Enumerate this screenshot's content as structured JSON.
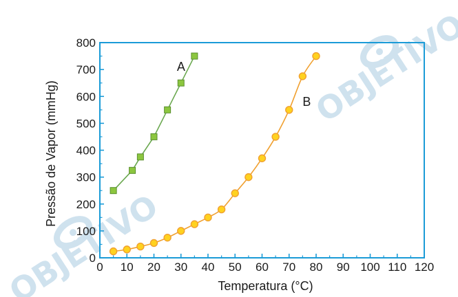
{
  "colors": {
    "axis": "#1a9bd7",
    "series_a": "#6aa84f",
    "series_a_fill": "#8cc63f",
    "series_b": "#f0a030",
    "series_b_fill": "#ffd21f",
    "watermark": "#cfe2ee"
  },
  "watermark": {
    "text": "OBJETIVO"
  },
  "chart_data": {
    "type": "line",
    "title": "",
    "xlabel": "Temperatura (°C)",
    "ylabel": "Pressão de Vapor (mmHg)",
    "xlim": [
      0,
      120
    ],
    "ylim": [
      0,
      800
    ],
    "x_ticks": [
      0,
      10,
      20,
      30,
      40,
      50,
      60,
      70,
      80,
      90,
      100,
      110,
      120
    ],
    "y_ticks": [
      0,
      100,
      200,
      300,
      400,
      500,
      600,
      700,
      800
    ],
    "grid": false,
    "series": [
      {
        "name": "A",
        "marker": "square",
        "x": [
          5,
          12,
          15,
          20,
          25,
          30,
          35
        ],
        "y": [
          250,
          325,
          375,
          450,
          550,
          650,
          750
        ]
      },
      {
        "name": "B",
        "marker": "circle",
        "x": [
          5,
          10,
          15,
          20,
          25,
          30,
          35,
          40,
          45,
          50,
          55,
          60,
          65,
          70,
          75,
          80
        ],
        "y": [
          24,
          31,
          42,
          55,
          75,
          100,
          125,
          150,
          180,
          240,
          300,
          370,
          450,
          550,
          675,
          750
        ]
      }
    ]
  }
}
